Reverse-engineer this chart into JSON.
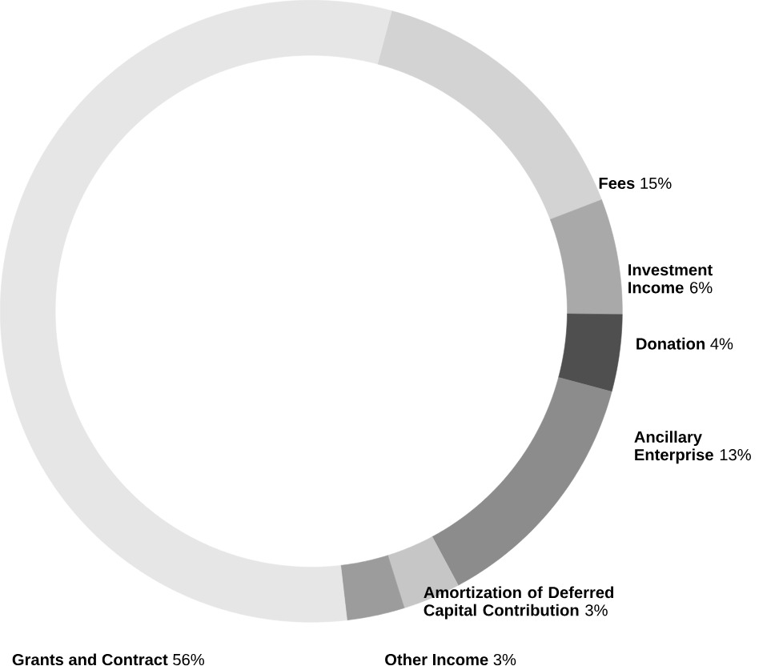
{
  "chart_data": {
    "type": "donut",
    "categories": [
      "Fees",
      "Investment Income",
      "Donation",
      "Ancillary Enterprise",
      "Amortization of Deferred Capital Contribution",
      "Other Income",
      "Grants and Contract"
    ],
    "values": [
      15,
      6,
      4,
      13,
      3,
      3,
      56
    ],
    "value_labels": [
      "15%",
      "6%",
      "4%",
      "13%",
      "3%",
      "3%",
      "56%"
    ],
    "colors": [
      "#d3d3d3",
      "#a9a9a9",
      "#4f4f4f",
      "#8c8c8c",
      "#c6c6c6",
      "#9c9c9c",
      "#e6e6e6"
    ]
  }
}
